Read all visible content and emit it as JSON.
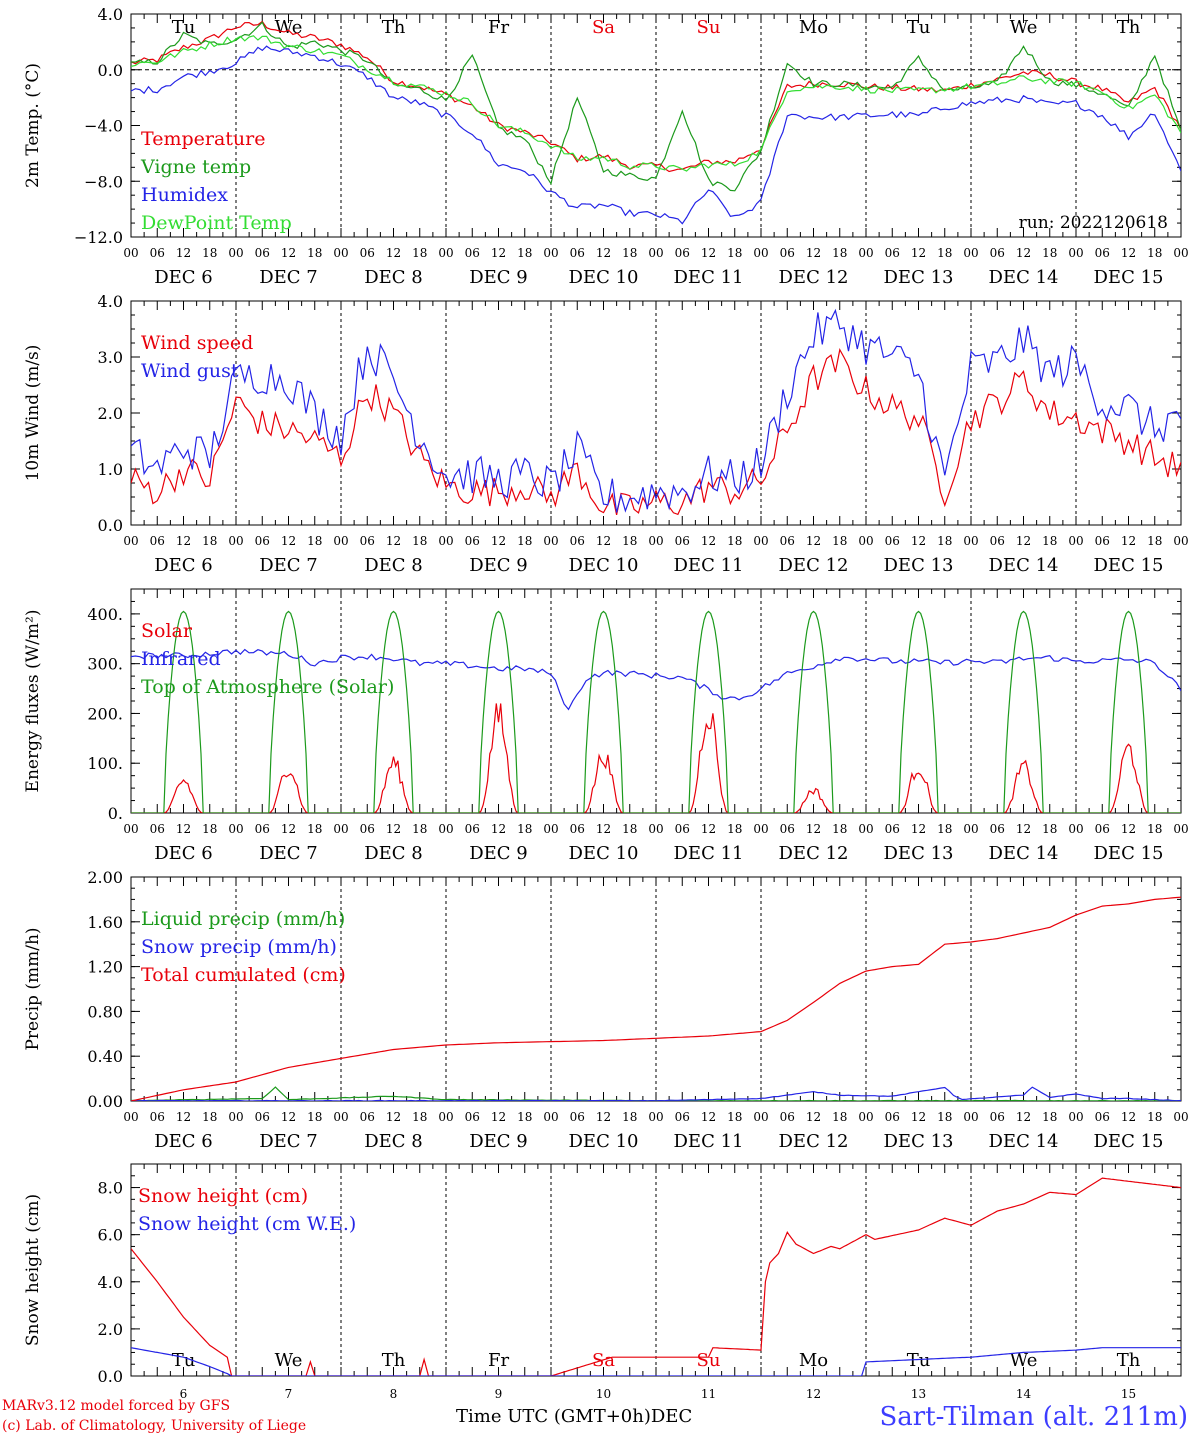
{
  "run_label": "run: 2022120618",
  "time_axis": {
    "hour_ticks": [
      "00",
      "06",
      "12",
      "18"
    ],
    "final_hour_tick": "00",
    "days": [
      {
        "date": "DEC  6",
        "weekday": "Tu",
        "num": "6"
      },
      {
        "date": "DEC  7",
        "weekday": "We",
        "num": "7"
      },
      {
        "date": "DEC  8",
        "weekday": "Th",
        "num": "8"
      },
      {
        "date": "DEC  9",
        "weekday": "Fr",
        "num": "9"
      },
      {
        "date": "DEC 10",
        "weekday": "Sa",
        "num": "10"
      },
      {
        "date": "DEC 11",
        "weekday": "Su",
        "num": "11"
      },
      {
        "date": "DEC 12",
        "weekday": "Mo",
        "num": "12"
      },
      {
        "date": "DEC 13",
        "weekday": "Tu",
        "num": "13"
      },
      {
        "date": "DEC 14",
        "weekday": "We",
        "num": "14"
      },
      {
        "date": "DEC 15",
        "weekday": "Th",
        "num": "15"
      }
    ],
    "xlabel": "Time UTC (GMT+0h)",
    "month_label": "DEC"
  },
  "colors": {
    "red": "#e8000a",
    "green": "#1c9a1c",
    "blue": "#2424e6",
    "lightgreen": "#33dd33",
    "weekend": "#e8000a"
  },
  "footer": {
    "credit1": "MARv3.12 model forced by GFS",
    "credit2": "(c) Lab. of Climatology, University of Liege",
    "station": "Sart-Tilman (alt. 211m)"
  },
  "chart_data": [
    {
      "type": "line",
      "id": "temp",
      "ylabel": "2m Temp. (°C)",
      "ylim": [
        -12,
        4
      ],
      "yticks": [
        -12,
        -8,
        -4,
        0,
        4
      ],
      "ytick_labels": [
        "−12.0",
        "−8.0",
        "−4.0",
        "0.0",
        "4.0"
      ],
      "zero_line": true,
      "x_unit": "hours since DEC 6 00 UTC",
      "series": [
        {
          "name": "Temperature",
          "color": "#e8000a",
          "x": [
            0,
            6,
            12,
            18,
            24,
            30,
            36,
            42,
            48,
            54,
            60,
            66,
            72,
            78,
            84,
            90,
            96,
            102,
            108,
            114,
            120,
            126,
            132,
            138,
            144,
            150,
            156,
            162,
            168,
            174,
            180,
            186,
            192,
            198,
            204,
            210,
            216,
            222,
            228,
            234,
            240
          ],
          "y": [
            0.5,
            0.7,
            1.6,
            2.2,
            3.1,
            3.3,
            2.6,
            2.3,
            1.8,
            0.9,
            -0.8,
            -1.2,
            -1.8,
            -2.6,
            -4,
            -4.5,
            -5.2,
            -6.4,
            -6.2,
            -6.9,
            -6.9,
            -7.2,
            -6.6,
            -6.6,
            -5.6,
            -1.2,
            -1.0,
            -1.0,
            -1.2,
            -1.3,
            -1.4,
            -1.5,
            -1.1,
            -0.7,
            -0.2,
            -0.4,
            -0.9,
            -1.4,
            -2.4,
            -1.3,
            -4.2
          ]
        },
        {
          "name": "Vigne temp",
          "color": "#1c9a1c",
          "x": [
            0,
            6,
            12,
            18,
            24,
            30,
            36,
            42,
            48,
            54,
            60,
            66,
            72,
            78,
            84,
            90,
            96,
            102,
            108,
            114,
            120,
            126,
            132,
            138,
            144,
            150,
            156,
            162,
            168,
            174,
            180,
            186,
            192,
            198,
            204,
            210,
            216,
            222,
            228,
            234,
            240
          ],
          "y": [
            0.4,
            0.6,
            2.5,
            1.8,
            2.2,
            3.2,
            1.6,
            2.0,
            1.4,
            0.7,
            -1.1,
            -1.4,
            -2.2,
            1.0,
            -4.2,
            -5.0,
            -8.0,
            -2.0,
            -7.2,
            -7.6,
            -7.8,
            -2.8,
            -8.0,
            -8.5,
            -5.8,
            0.5,
            -1.0,
            -1.0,
            -1.2,
            -1.3,
            0.8,
            -1.5,
            -1.3,
            -1.0,
            1.7,
            -0.8,
            -1.1,
            -1.7,
            -2.8,
            1.1,
            -4.5
          ]
        },
        {
          "name": "Humidex",
          "color": "#2424e6",
          "x": [
            0,
            6,
            12,
            18,
            24,
            30,
            36,
            42,
            48,
            54,
            60,
            66,
            72,
            78,
            84,
            90,
            96,
            102,
            108,
            114,
            120,
            126,
            132,
            138,
            144,
            150,
            156,
            162,
            168,
            174,
            180,
            186,
            192,
            198,
            204,
            210,
            216,
            222,
            228,
            234,
            240
          ],
          "y": [
            -1.5,
            -1.4,
            -0.5,
            -0.1,
            0.5,
            1.6,
            1.3,
            1.0,
            0.4,
            -0.5,
            -2.0,
            -2.4,
            -3.3,
            -4.5,
            -6.8,
            -7.2,
            -8.8,
            -9.9,
            -9.7,
            -10.3,
            -10.4,
            -10.9,
            -8.6,
            -10.7,
            -9.5,
            -3.2,
            -3.4,
            -3.4,
            -3.3,
            -3.2,
            -3.3,
            -2.7,
            -2.4,
            -2.2,
            -2.1,
            -2.5,
            -2.4,
            -3.3,
            -4.8,
            -3.0,
            -7.3
          ]
        },
        {
          "name": "DewPoint Temp",
          "color": "#33dd33",
          "x": [
            0,
            6,
            12,
            18,
            24,
            30,
            36,
            42,
            48,
            54,
            60,
            66,
            72,
            78,
            84,
            90,
            96,
            102,
            108,
            114,
            120,
            126,
            132,
            138,
            144,
            150,
            156,
            162,
            168,
            174,
            180,
            186,
            192,
            198,
            204,
            210,
            216,
            222,
            228,
            234,
            240
          ],
          "y": [
            0.4,
            0.6,
            1.3,
            1.8,
            2.3,
            2.3,
            1.7,
            1.4,
            1.0,
            0.1,
            -0.8,
            -1.2,
            -1.7,
            -2.4,
            -4.0,
            -4.5,
            -5.4,
            -6.4,
            -6.3,
            -6.9,
            -6.9,
            -7.2,
            -6.8,
            -6.8,
            -5.8,
            -1.4,
            -1.2,
            -1.2,
            -1.4,
            -1.5,
            -1.5,
            -1.4,
            -1.2,
            -1.0,
            -0.6,
            -0.8,
            -1.0,
            -1.6,
            -2.8,
            -1.8,
            -4.5
          ]
        }
      ]
    },
    {
      "type": "line",
      "id": "wind",
      "ylabel": "10m Wind (m/s)",
      "ylim": [
        0,
        4
      ],
      "yticks": [
        0,
        1,
        2,
        3,
        4
      ],
      "ytick_labels": [
        "0.0",
        "1.0",
        "2.0",
        "3.0",
        "4.0"
      ],
      "x_unit": "hours since DEC 6 00 UTC",
      "series": [
        {
          "name": "Wind speed",
          "color": "#e8000a",
          "x": [
            0,
            6,
            12,
            18,
            24,
            30,
            36,
            42,
            48,
            54,
            60,
            66,
            72,
            78,
            84,
            90,
            96,
            102,
            108,
            114,
            120,
            126,
            132,
            138,
            144,
            150,
            156,
            162,
            168,
            174,
            180,
            186,
            192,
            198,
            204,
            210,
            216,
            222,
            228,
            234,
            240
          ],
          "y": [
            0.8,
            0.6,
            1.0,
            0.8,
            2.2,
            1.8,
            1.7,
            1.5,
            1.2,
            2.4,
            2.0,
            1.2,
            0.7,
            0.6,
            0.6,
            0.7,
            0.5,
            1.0,
            0.3,
            0.3,
            0.4,
            0.4,
            0.7,
            0.6,
            0.8,
            1.7,
            2.6,
            2.9,
            2.4,
            2.1,
            1.9,
            0.6,
            1.9,
            2.2,
            2.6,
            2.0,
            1.9,
            1.7,
            1.5,
            1.2,
            1.0
          ]
        },
        {
          "name": "Wind gust",
          "color": "#2424e6",
          "x": [
            0,
            6,
            12,
            18,
            24,
            30,
            36,
            42,
            48,
            54,
            60,
            66,
            72,
            78,
            84,
            90,
            96,
            102,
            108,
            114,
            120,
            126,
            132,
            138,
            144,
            150,
            156,
            162,
            168,
            174,
            180,
            186,
            192,
            198,
            204,
            210,
            216,
            222,
            228,
            234,
            240
          ],
          "y": [
            1.3,
            1.0,
            1.4,
            1.2,
            2.6,
            2.7,
            2.6,
            2.0,
            1.6,
            3.2,
            2.6,
            1.6,
            0.9,
            0.9,
            0.8,
            0.9,
            0.7,
            1.3,
            0.5,
            0.5,
            0.6,
            0.6,
            0.9,
            0.8,
            1.1,
            2.4,
            3.4,
            3.6,
            3.2,
            3.0,
            2.7,
            0.8,
            2.8,
            2.9,
            3.3,
            2.7,
            2.9,
            2.2,
            2.1,
            1.7,
            2.0
          ]
        }
      ]
    },
    {
      "type": "line",
      "id": "energy",
      "ylabel": "Energy fluxes (W/m²)",
      "ylim": [
        0,
        450
      ],
      "yticks": [
        0,
        100,
        200,
        300,
        400
      ],
      "ytick_labels": [
        "0.",
        "100.",
        "200.",
        "300.",
        "400."
      ],
      "x_unit": "hours since DEC 6 00 UTC",
      "solar_daily_peaks": [
        70,
        100,
        110,
        210,
        125,
        220,
        50,
        100,
        100,
        140
      ],
      "toa_daily_peak": 405,
      "series": [
        {
          "name": "Solar",
          "color": "#e8000a"
        },
        {
          "name": "Infrared",
          "color": "#2424e6",
          "x": [
            0,
            12,
            24,
            30,
            36,
            42,
            48,
            54,
            60,
            66,
            72,
            78,
            84,
            90,
            96,
            100,
            104,
            108,
            114,
            120,
            126,
            132,
            136,
            140,
            144,
            150,
            156,
            162,
            168,
            174,
            180,
            186,
            192,
            198,
            204,
            210,
            216,
            222,
            228,
            234,
            240
          ],
          "y": [
            316,
            316,
            325,
            322,
            320,
            300,
            312,
            315,
            310,
            300,
            300,
            296,
            290,
            290,
            280,
            206,
            270,
            282,
            280,
            276,
            272,
            248,
            230,
            232,
            250,
            280,
            295,
            312,
            310,
            305,
            304,
            302,
            305,
            302,
            310,
            312,
            305,
            306,
            308,
            302,
            248
          ]
        },
        {
          "name": "Top of Atmosphere (Solar)",
          "color": "#1c9a1c"
        }
      ]
    },
    {
      "type": "line",
      "id": "precip",
      "ylabel": "Precip (mm/h)",
      "ylim": [
        0,
        2
      ],
      "yticks": [
        0,
        0.4,
        0.8,
        1.2,
        1.6,
        2.0
      ],
      "ytick_labels": [
        "0.00",
        "0.40",
        "0.80",
        "1.20",
        "1.60",
        "2.00"
      ],
      "x_unit": "hours since DEC 6 00 UTC",
      "series": [
        {
          "name": "Liquid precip (mm/h)",
          "color": "#1c9a1c",
          "x": [
            0,
            30,
            33,
            36,
            60,
            72,
            120,
            168,
            240
          ],
          "y": [
            0,
            0.02,
            0.12,
            0.01,
            0.04,
            0.01,
            0,
            0,
            0
          ]
        },
        {
          "name": "Snow precip (mm/h)",
          "color": "#2424e6",
          "x": [
            0,
            120,
            144,
            156,
            162,
            174,
            186,
            188,
            190,
            204,
            206,
            210,
            216,
            222,
            228,
            240
          ],
          "y": [
            0,
            0,
            0.02,
            0.08,
            0.05,
            0.04,
            0.12,
            0.05,
            0.01,
            0.05,
            0.12,
            0.03,
            0.06,
            0.02,
            0.02,
            0
          ]
        },
        {
          "name": "Total cumulated (cm)",
          "color": "#e8000a",
          "x": [
            0,
            12,
            24,
            36,
            48,
            60,
            72,
            84,
            96,
            108,
            120,
            132,
            144,
            150,
            156,
            162,
            168,
            174,
            180,
            186,
            192,
            198,
            204,
            210,
            216,
            222,
            228,
            234,
            240
          ],
          "y": [
            0,
            0.1,
            0.17,
            0.3,
            0.38,
            0.46,
            0.5,
            0.52,
            0.53,
            0.54,
            0.56,
            0.58,
            0.62,
            0.72,
            0.88,
            1.05,
            1.16,
            1.2,
            1.22,
            1.4,
            1.42,
            1.45,
            1.5,
            1.55,
            1.66,
            1.74,
            1.76,
            1.8,
            1.82
          ]
        }
      ]
    },
    {
      "type": "line",
      "id": "snow",
      "ylabel": "Snow height (cm)",
      "ylim": [
        0,
        9
      ],
      "yticks": [
        0,
        2,
        4,
        6,
        8
      ],
      "ytick_labels": [
        "0.0",
        "2.0",
        "4.0",
        "6.0",
        "8.0"
      ],
      "x_unit": "hours since DEC 6 00 UTC",
      "series": [
        {
          "name": "Snow height (cm)",
          "color": "#e8000a",
          "x": [
            0,
            6,
            12,
            18,
            22,
            23,
            40,
            41,
            42,
            66,
            67,
            68,
            96,
            110,
            132,
            133,
            144,
            145,
            146,
            148,
            150,
            152,
            156,
            160,
            162,
            168,
            170,
            180,
            186,
            192,
            198,
            204,
            210,
            216,
            222,
            240
          ],
          "y": [
            5.4,
            4.0,
            2.5,
            1.3,
            0.8,
            0,
            0,
            0.6,
            0,
            0,
            0.7,
            0,
            0,
            0.8,
            0.8,
            1.2,
            1.1,
            4.0,
            4.8,
            5.2,
            6.1,
            5.6,
            5.2,
            5.5,
            5.4,
            6.0,
            5.8,
            6.2,
            6.7,
            6.4,
            7.0,
            7.3,
            7.8,
            7.7,
            8.4,
            8.0
          ]
        },
        {
          "name": "Snow height (cm W.E.)",
          "color": "#2424e6",
          "x": [
            0,
            12,
            18,
            22,
            23,
            167,
            168,
            180,
            192,
            204,
            216,
            222,
            240
          ],
          "y": [
            1.2,
            0.8,
            0.4,
            0.1,
            0,
            0,
            0.6,
            0.7,
            0.8,
            1.0,
            1.1,
            1.2,
            1.2
          ]
        }
      ]
    }
  ]
}
